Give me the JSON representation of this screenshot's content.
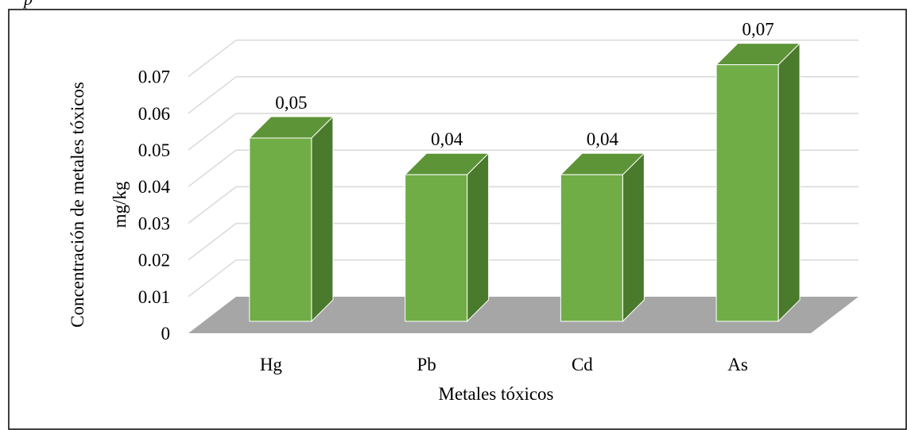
{
  "header_fragment": "p",
  "chart_data": {
    "type": "bar",
    "style": "3d-column",
    "title": "",
    "xlabel": "Metales tóxicos",
    "ylabel_line1": "Concentración de metales tóxicos",
    "ylabel_line2": "mg/kg",
    "categories": [
      "Hg",
      "Pb",
      "Cd",
      "As"
    ],
    "values": [
      0.05,
      0.04,
      0.04,
      0.07
    ],
    "data_labels": [
      "0,05",
      "0,04",
      "0,04",
      "0,07"
    ],
    "ylim": [
      0,
      0.08
    ],
    "yticks": [
      0,
      0.01,
      0.02,
      0.03,
      0.04,
      0.05,
      0.06,
      0.07
    ],
    "ytick_labels": [
      "0",
      "0.01",
      "0.02",
      "0.03",
      "0.04",
      "0.05",
      "0.06",
      "0.07"
    ],
    "grid": true,
    "legend": "none",
    "colors": {
      "bar_front": "#70ad47",
      "bar_top": "#5e9438",
      "bar_side": "#4a7a2c",
      "floor": "#a6a6a6",
      "gridline": "#d9d9d9",
      "frame": "#000000"
    }
  }
}
